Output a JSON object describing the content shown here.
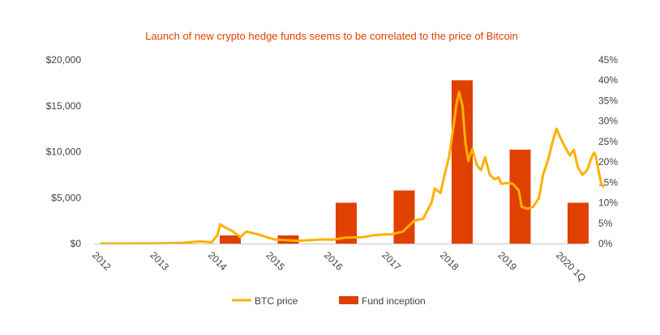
{
  "chart_data": {
    "type": "bar+line",
    "title": "Launch of new crypto hedge funds seems to be correlated to the price of Bitcoin",
    "x_categories": [
      "2012",
      "2013",
      "2014",
      "2015",
      "2016",
      "2017",
      "2018",
      "2019",
      "2020 1Q"
    ],
    "left_axis": {
      "ticks": [
        "$0",
        "$5,000",
        "$10,000",
        "$15,000",
        "$20,000"
      ],
      "range": [
        0,
        20000
      ]
    },
    "right_axis": {
      "ticks": [
        "0%",
        "5%",
        "10%",
        "15%",
        "20%",
        "25%",
        "30%",
        "35%",
        "40%",
        "45%"
      ],
      "range": [
        0,
        45
      ]
    },
    "bar_series": {
      "name": "Fund inception",
      "categories": [
        "2014",
        "2015",
        "2016",
        "2017",
        "2018",
        "2019",
        "2020 1Q"
      ],
      "values": [
        2,
        2,
        10,
        13,
        40,
        23,
        10
      ]
    },
    "line_series": {
      "name": "BTC price",
      "points": [
        [
          0.0,
          5
        ],
        [
          0.5,
          8
        ],
        [
          1.0,
          15
        ],
        [
          1.4,
          80
        ],
        [
          1.7,
          250
        ],
        [
          1.9,
          130
        ],
        [
          2.0,
          900
        ],
        [
          2.05,
          2100
        ],
        [
          2.15,
          1700
        ],
        [
          2.25,
          1400
        ],
        [
          2.4,
          700
        ],
        [
          2.5,
          1300
        ],
        [
          2.7,
          1000
        ],
        [
          2.9,
          600
        ],
        [
          3.0,
          430
        ],
        [
          3.4,
          300
        ],
        [
          3.8,
          450
        ],
        [
          4.0,
          430
        ],
        [
          4.2,
          650
        ],
        [
          4.5,
          700
        ],
        [
          4.7,
          900
        ],
        [
          4.9,
          1000
        ],
        [
          5.0,
          1000
        ],
        [
          5.2,
          1300
        ],
        [
          5.4,
          2500
        ],
        [
          5.55,
          2700
        ],
        [
          5.7,
          4500
        ],
        [
          5.75,
          6000
        ],
        [
          5.85,
          5500
        ],
        [
          5.92,
          7500
        ],
        [
          6.0,
          9500
        ],
        [
          6.08,
          13000
        ],
        [
          6.12,
          15000
        ],
        [
          6.17,
          16500
        ],
        [
          6.23,
          15000
        ],
        [
          6.28,
          11000
        ],
        [
          6.33,
          9000
        ],
        [
          6.4,
          10300
        ],
        [
          6.48,
          8500
        ],
        [
          6.55,
          8000
        ],
        [
          6.62,
          9400
        ],
        [
          6.7,
          7500
        ],
        [
          6.78,
          7000
        ],
        [
          6.85,
          7200
        ],
        [
          6.9,
          6500
        ],
        [
          7.0,
          6600
        ],
        [
          7.1,
          6500
        ],
        [
          7.2,
          5800
        ],
        [
          7.25,
          4000
        ],
        [
          7.35,
          3800
        ],
        [
          7.45,
          4000
        ],
        [
          7.55,
          5000
        ],
        [
          7.62,
          7500
        ],
        [
          7.7,
          9000
        ],
        [
          7.78,
          11000
        ],
        [
          7.85,
          12500
        ],
        [
          7.92,
          11500
        ],
        [
          8.0,
          10500
        ],
        [
          8.08,
          9600
        ],
        [
          8.15,
          10200
        ],
        [
          8.22,
          8300
        ],
        [
          8.3,
          7500
        ],
        [
          8.38,
          8000
        ],
        [
          8.45,
          9300
        ],
        [
          8.5,
          9900
        ],
        [
          8.53,
          9500
        ],
        [
          8.58,
          7800
        ],
        [
          8.62,
          6600
        ],
        [
          8.66,
          6200
        ]
      ]
    },
    "legend": [
      "BTC price",
      "Fund inception"
    ],
    "legend_position": "bottom",
    "grid": false,
    "colors": {
      "line": "#ffb000",
      "bar": "#e04000",
      "title": "#e04000",
      "axis": "#c8c8c8",
      "text": "#404040"
    }
  }
}
